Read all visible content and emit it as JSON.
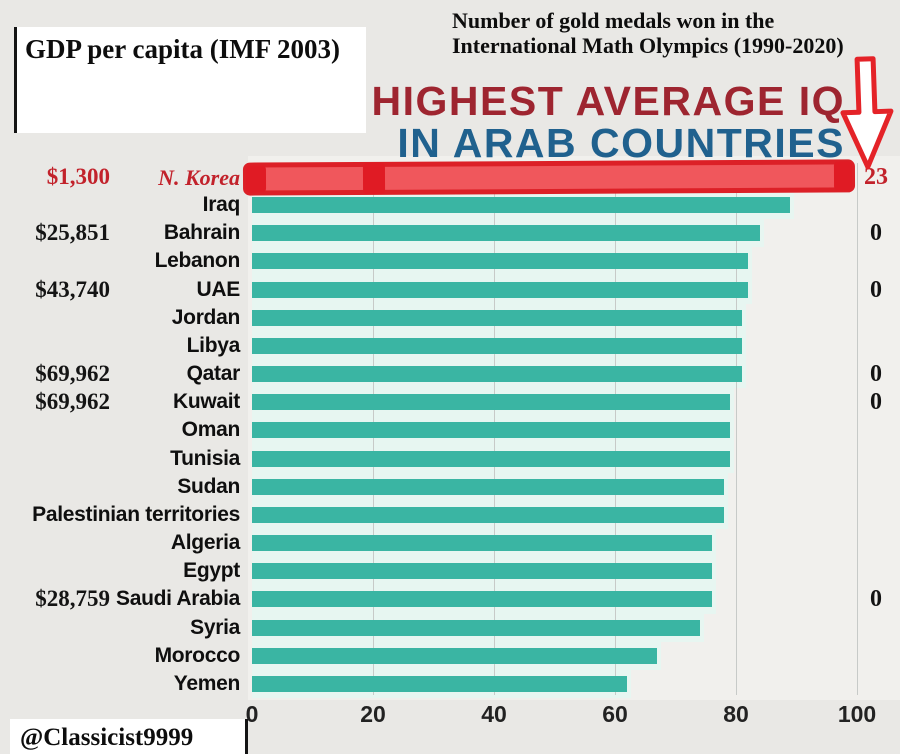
{
  "page": {
    "watermark": "@Classicist9999",
    "background_color": "#e9e8e5"
  },
  "annotations": {
    "gdp_box_title": "GDP per capita (IMF 2003)",
    "medals_note_line1": "Number of gold medals won in the",
    "medals_note_line2": "International Math Olympics (1990-2020)",
    "text_red": "#c2222b"
  },
  "title": {
    "line1": "HIGHEST AVERAGE IQ",
    "line2": "IN ARAB COUNTRIES",
    "line1_color": "#9e2530",
    "line2_color": "#20618e"
  },
  "chart_data": {
    "type": "bar",
    "orientation": "horizontal",
    "title": "Highest average IQ in Arab countries",
    "xlabel": "",
    "ylabel": "",
    "xlim": [
      0,
      100
    ],
    "x_ticks": [
      0,
      20,
      40,
      60,
      80,
      100
    ],
    "grid": true,
    "bar_color": "#3ab5a3",
    "row_stripe_color": "#e7f6f1",
    "highlight_marker_color": "#ee3d46",
    "highlighted_category": "N. Korea",
    "categories": [
      "N. Korea",
      "Iraq",
      "Bahrain",
      "Lebanon",
      "UAE",
      "Jordan",
      "Libya",
      "Qatar",
      "Kuwait",
      "Oman",
      "Tunisia",
      "Sudan",
      "Palestinian territories",
      "Algeria",
      "Egypt",
      "Saudi Arabia",
      "Syria",
      "Morocco",
      "Yemen"
    ],
    "series": [
      {
        "name": "Average IQ",
        "values": [
          98,
          89,
          84,
          82,
          82,
          81,
          81,
          81,
          79,
          79,
          79,
          78,
          78,
          76,
          76,
          76,
          74,
          67,
          62
        ]
      },
      {
        "name": "GDP per capita (IMF 2003)",
        "values": [
          "$1,300",
          null,
          "$25,851",
          null,
          "$43,740",
          null,
          null,
          "$69,962",
          "$69,962",
          null,
          null,
          null,
          null,
          null,
          null,
          "$28,759",
          null,
          null,
          null
        ]
      },
      {
        "name": "Gold medals, International Math Olympics 1990-2020",
        "values": [
          "23",
          null,
          "0",
          null,
          "0",
          null,
          null,
          "0",
          "0",
          null,
          null,
          null,
          null,
          null,
          null,
          "0",
          null,
          null,
          null
        ]
      }
    ]
  }
}
